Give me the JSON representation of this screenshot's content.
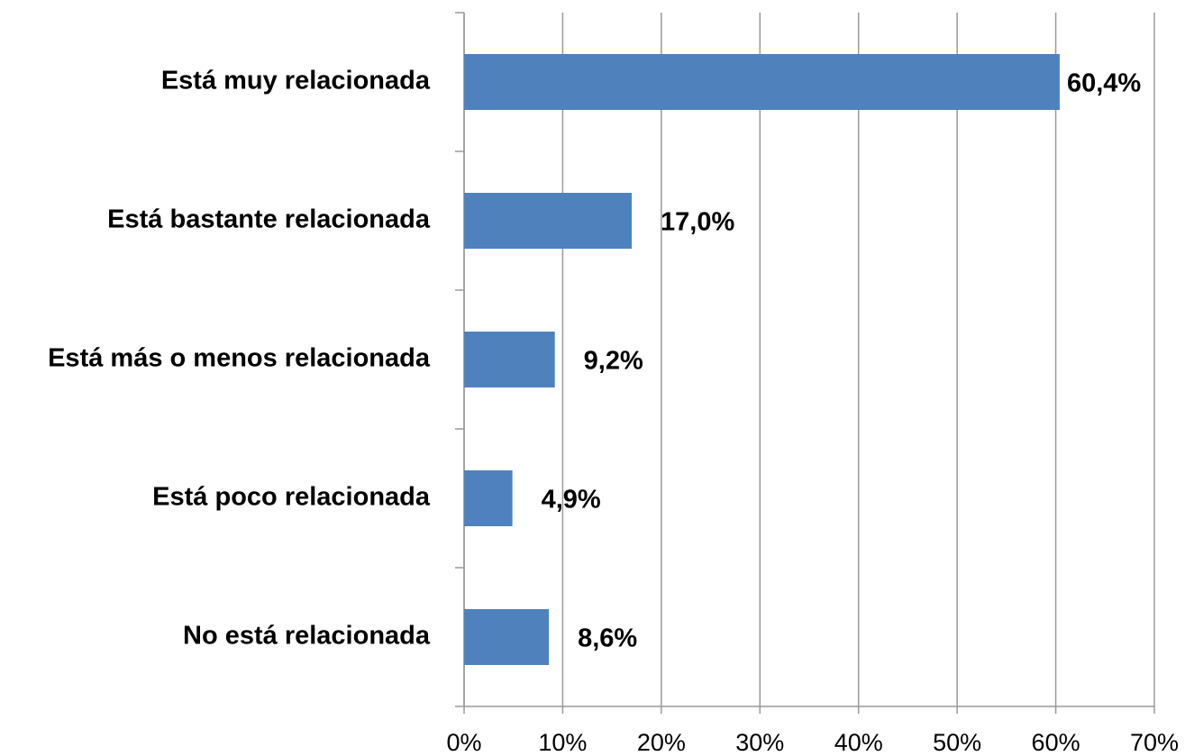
{
  "chart_data": {
    "type": "barh",
    "categories": [
      "Está muy relacionada",
      "Está bastante relacionada",
      "Está más o menos relacionada",
      "Está poco relacionada",
      "No está relacionada"
    ],
    "values": [
      60.4,
      17.0,
      9.2,
      4.9,
      8.6
    ],
    "value_labels": [
      "60,4%",
      "17,0%",
      "9,2%",
      "4,9%",
      "8,6%"
    ],
    "color": "#4f81bd",
    "xlim": [
      0,
      70
    ],
    "xticks": [
      {
        "value": 0,
        "label": "0%"
      },
      {
        "value": 10,
        "label": "10%"
      },
      {
        "value": 20,
        "label": "20%"
      },
      {
        "value": 30,
        "label": "30%"
      },
      {
        "value": 40,
        "label": "40%"
      },
      {
        "value": 50,
        "label": "50%"
      },
      {
        "value": 60,
        "label": "60%"
      },
      {
        "value": 70,
        "label": "70%"
      }
    ],
    "grid": true
  }
}
